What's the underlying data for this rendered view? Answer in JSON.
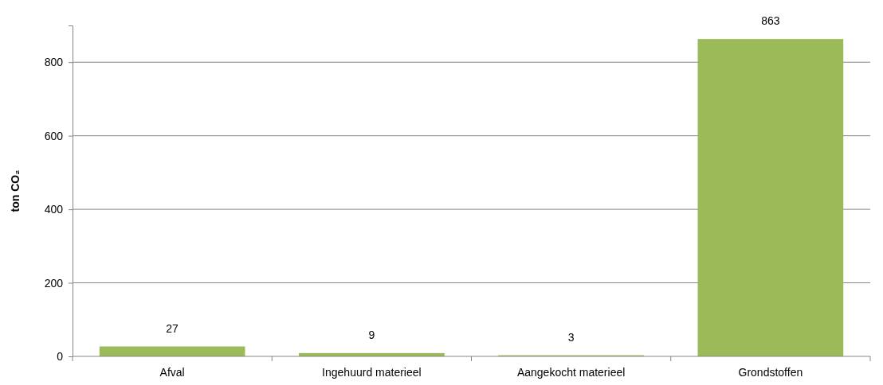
{
  "chart_data": {
    "type": "bar",
    "ylabel": "ton CO₂",
    "categories": [
      "Afval",
      "Ingehuurd materieel",
      "Aangekocht materieel",
      "Grondstoffen"
    ],
    "values": [
      27,
      9,
      3,
      863
    ],
    "color": "#9bbb59",
    "ylim": [
      0,
      900
    ],
    "yticks": [
      0,
      200,
      400,
      600,
      800
    ],
    "grid": "y",
    "data_labels": true
  }
}
